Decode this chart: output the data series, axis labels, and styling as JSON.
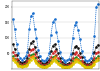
{
  "title": "",
  "background_color": "#ffffff",
  "gridline_color": "#cccccc",
  "ylim": [
    0,
    220
  ],
  "yticks": [
    0,
    50,
    100,
    150,
    200
  ],
  "series": {
    "Delhi": {
      "color": "#1a6fce",
      "linestyle": "--",
      "linewidth": 0.5,
      "marker": "s",
      "markersize": 0.8,
      "values": [
        160,
        130,
        80,
        50,
        35,
        30,
        35,
        40,
        55,
        130,
        170,
        180,
        130,
        100,
        60,
        40,
        30,
        25,
        30,
        35,
        50,
        110,
        150,
        160,
        120,
        90,
        55,
        35,
        28,
        22,
        28,
        32,
        48,
        100,
        140,
        150,
        125,
        95,
        58,
        38,
        30,
        24,
        30,
        34,
        50,
        105,
        200,
        210
      ]
    },
    "Kolkata": {
      "color": "#111111",
      "linestyle": "--",
      "linewidth": 0.5,
      "marker": "s",
      "markersize": 0.8,
      "values": [
        80,
        65,
        45,
        30,
        22,
        20,
        22,
        25,
        35,
        65,
        85,
        90,
        70,
        55,
        38,
        25,
        18,
        16,
        18,
        22,
        30,
        58,
        75,
        80,
        65,
        50,
        35,
        22,
        16,
        14,
        16,
        20,
        28,
        52,
        70,
        75,
        68,
        52,
        37,
        23,
        17,
        15,
        17,
        21,
        29,
        54,
        72,
        78
      ]
    },
    "Mumbai": {
      "color": "#cc2222",
      "linestyle": "--",
      "linewidth": 0.5,
      "marker": "s",
      "markersize": 0.8,
      "values": [
        55,
        45,
        32,
        22,
        16,
        14,
        16,
        18,
        25,
        45,
        60,
        65,
        48,
        38,
        27,
        18,
        13,
        11,
        13,
        16,
        22,
        38,
        52,
        58,
        44,
        35,
        25,
        16,
        12,
        10,
        12,
        14,
        20,
        34,
        48,
        54,
        46,
        37,
        26,
        17,
        12.5,
        11,
        12.5,
        15,
        21,
        36,
        50,
        56
      ]
    },
    "Chennai": {
      "color": "#228822",
      "linestyle": "--",
      "linewidth": 0.5,
      "marker": "s",
      "markersize": 0.8,
      "values": [
        40,
        32,
        22,
        15,
        11,
        10,
        11,
        13,
        18,
        32,
        44,
        48,
        34,
        27,
        18,
        12,
        9,
        8,
        9,
        11,
        16,
        27,
        38,
        42,
        30,
        24,
        16,
        11,
        8,
        7,
        8,
        10,
        14,
        24,
        34,
        38,
        32,
        25,
        17,
        11,
        8.5,
        7.5,
        8.5,
        10.5,
        15,
        25,
        35,
        40
      ]
    },
    "Hyderabad": {
      "color": "#ff8800",
      "linestyle": "--",
      "linewidth": 0.5,
      "marker": "s",
      "markersize": 0.8,
      "values": [
        35,
        28,
        19,
        13,
        10,
        9,
        10,
        12,
        16,
        28,
        38,
        42,
        30,
        23,
        16,
        10,
        8,
        7,
        8,
        10,
        14,
        23,
        33,
        37,
        26,
        20,
        14,
        9,
        7,
        6,
        7,
        9,
        12,
        20,
        29,
        33,
        28,
        22,
        15,
        10,
        7.5,
        6.5,
        7.5,
        9.5,
        13,
        21,
        30,
        35
      ]
    },
    "Bengaluru": {
      "color": "#ddcc00",
      "linestyle": "--",
      "linewidth": 0.5,
      "marker": "s",
      "markersize": 0.8,
      "values": [
        28,
        22,
        15,
        10,
        8,
        7,
        8,
        9,
        13,
        22,
        30,
        34,
        24,
        19,
        13,
        8,
        6,
        5.5,
        6,
        8,
        11,
        18,
        26,
        30,
        21,
        16,
        11,
        7,
        5.5,
        5,
        5.5,
        7,
        10,
        16,
        23,
        27,
        23,
        18,
        12,
        8,
        6,
        5.5,
        6,
        7.5,
        11,
        17,
        24,
        28
      ]
    }
  },
  "n_points": 48
}
